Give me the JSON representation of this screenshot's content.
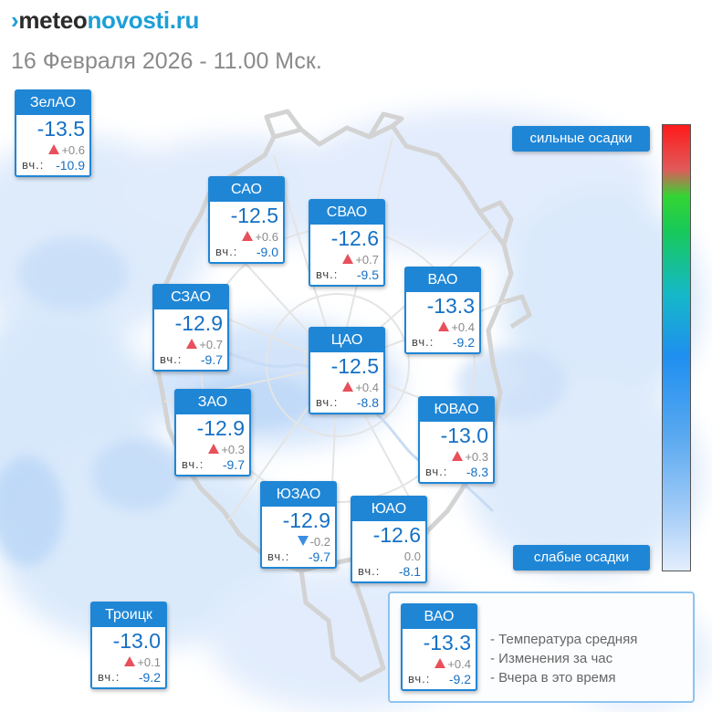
{
  "header": {
    "brand_mark": "›",
    "brand_dark": "meteo",
    "brand_light": "novosti.ru",
    "datetime": "16 Февраля 2026 - 11.00 Мск."
  },
  "colors": {
    "card_blue": "#1f86d6",
    "temp_blue": "#1570c4",
    "rise_red": "#e8505b",
    "fall_blue": "#3a8fe0",
    "precip_light": "#dbe9fb"
  },
  "districts": [
    {
      "name": "ЗелАО",
      "temp": "-13.5",
      "change": "+0.6",
      "trend": "up",
      "yday_label": "вч.:",
      "yday": "-10.9"
    },
    {
      "name": "САО",
      "temp": "-12.5",
      "change": "+0.6",
      "trend": "up",
      "yday_label": "вч.:",
      "yday": "-9.0"
    },
    {
      "name": "СВАО",
      "temp": "-12.6",
      "change": "+0.7",
      "trend": "up",
      "yday_label": "вч.:",
      "yday": "-9.5"
    },
    {
      "name": "ВАО",
      "temp": "-13.3",
      "change": "+0.4",
      "trend": "up",
      "yday_label": "вч.:",
      "yday": "-9.2"
    },
    {
      "name": "СЗАО",
      "temp": "-12.9",
      "change": "+0.7",
      "trend": "up",
      "yday_label": "вч.:",
      "yday": "-9.7"
    },
    {
      "name": "ЦАО",
      "temp": "-12.5",
      "change": "+0.4",
      "trend": "up",
      "yday_label": "вч.:",
      "yday": "-8.8"
    },
    {
      "name": "ЗАО",
      "temp": "-12.9",
      "change": "+0.3",
      "trend": "up",
      "yday_label": "вч.:",
      "yday": "-9.7"
    },
    {
      "name": "ЮВАО",
      "temp": "-13.0",
      "change": "+0.3",
      "trend": "up",
      "yday_label": "вч.:",
      "yday": "-8.3"
    },
    {
      "name": "ЮЗАО",
      "temp": "-12.9",
      "change": "-0.2",
      "trend": "down",
      "yday_label": "вч.:",
      "yday": "-9.7"
    },
    {
      "name": "ЮАО",
      "temp": "-12.6",
      "change": "0.0",
      "trend": "none",
      "yday_label": "вч.:",
      "yday": "-8.1"
    },
    {
      "name": "Троицк",
      "temp": "-13.0",
      "change": "+0.1",
      "trend": "up",
      "yday_label": "вч.:",
      "yday": "-9.2"
    }
  ],
  "scale": {
    "high_label": "сильные осадки",
    "low_label": "слабые осадки"
  },
  "legend": {
    "sample": {
      "name": "ВАО",
      "temp": "-13.3",
      "change": "+0.4",
      "trend": "up",
      "yday_label": "вч.:",
      "yday": "-9.2"
    },
    "line_temp": "- Температура средняя",
    "line_change": "- Изменения за час",
    "line_yday": "- Вчера в это время"
  }
}
